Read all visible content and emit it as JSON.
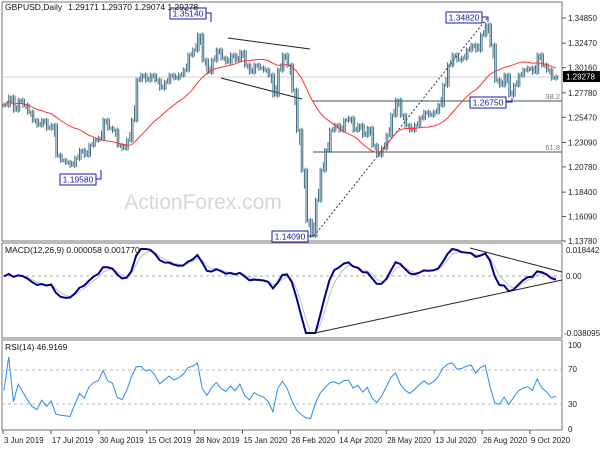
{
  "chart_data": [
    {
      "type": "bar",
      "subtype": "ohlc-price",
      "title": "GBPUSD,Daily",
      "ohlc_readout": "1.29171 1.29370 1.29074 1.29278",
      "last_price": "1.29278",
      "x_tick_labels": [
        "3 Jun 2019",
        "17 Jul 2019",
        "30 Aug 2019",
        "15 Oct 2019",
        "28 Nov 2019",
        "15 Jan 2020",
        "28 Feb 2020",
        "14 Apr 2020",
        "28 May 2020",
        "13 Jul 2020",
        "26 Aug 2020",
        "9 Oct 2020"
      ],
      "y_tick_labels": [
        "1.34850",
        "1.32470",
        "1.30160",
        "1.27780",
        "1.25470",
        "1.23090",
        "1.20780",
        "1.18400",
        "1.16090",
        "1.13780"
      ],
      "ylim": [
        1.1378,
        1.3485
      ],
      "closes": [
        1.2661,
        1.2737,
        1.2614,
        1.2708,
        1.2661,
        1.2595,
        1.2519,
        1.2472,
        1.2519,
        1.2443,
        1.2472,
        1.2188,
        1.214,
        1.2121,
        1.2093,
        1.2159,
        1.2235,
        1.2188,
        1.2282,
        1.233,
        1.2349,
        1.2519,
        1.2443,
        1.2424,
        1.2282,
        1.2254,
        1.233,
        1.2519,
        1.2898,
        1.2945,
        1.2898,
        1.2945,
        1.2898,
        1.2822,
        1.2879,
        1.2945,
        1.2917,
        1.2945,
        1.2993,
        1.3135,
        1.3182,
        1.3324,
        1.3087,
        1.2973,
        1.3087,
        1.3182,
        1.3106,
        1.3068,
        1.3135,
        1.3087,
        1.3163,
        1.304,
        1.2973,
        1.304,
        1.3011,
        1.2993,
        1.2945,
        1.2756,
        1.2993,
        1.3135,
        1.304,
        1.2803,
        1.2424,
        1.2046,
        1.1572,
        1.143,
        1.1762,
        1.2046,
        1.2235,
        1.2424,
        1.2472,
        1.2424,
        1.2519,
        1.2538,
        1.2424,
        1.2472,
        1.2377,
        1.2443,
        1.2282,
        1.2188,
        1.2254,
        1.2377,
        1.2566,
        1.2708,
        1.2566,
        1.2472,
        1.2424,
        1.2472,
        1.2538,
        1.2595,
        1.2566,
        1.2595,
        1.2661,
        1.285,
        1.304,
        1.3135,
        1.3087,
        1.3106,
        1.3182,
        1.3229,
        1.3182,
        1.3324,
        1.3419,
        1.3229,
        1.2898,
        1.285,
        1.2945,
        1.2756,
        1.285,
        1.2945,
        1.2993,
        1.3011,
        1.2973,
        1.3135,
        1.304,
        1.2993,
        1.2917,
        1.2928
      ],
      "annotations": {
        "labels": [
          "1.35140",
          "1.19580",
          "1.14090",
          "1.34820",
          "1.26750"
        ],
        "fib_levels": [
          {
            "label": "38.2",
            "price": 1.2675
          },
          {
            "label": "61.8",
            "price": 1.2215
          }
        ]
      },
      "moving_average_color": "#ff3030",
      "bar_color": "#3f6e85",
      "watermark": "ActionForex.com"
    },
    {
      "type": "line",
      "title": "MACD(12,26,9) 0.000058 0.001770",
      "y_tick_labels": [
        "0.018442",
        "0.00",
        "-0.038095"
      ],
      "ylim": [
        -0.038095,
        0.018442
      ],
      "macd_color": "#00008b",
      "signal_color": "#c0c0c0"
    },
    {
      "type": "line",
      "title": "RSI(14) 46.9169",
      "y_tick_labels": [
        "100",
        "70",
        "30",
        "0"
      ],
      "ylim": [
        0,
        100
      ],
      "line_color": "#2a8cf0"
    }
  ]
}
